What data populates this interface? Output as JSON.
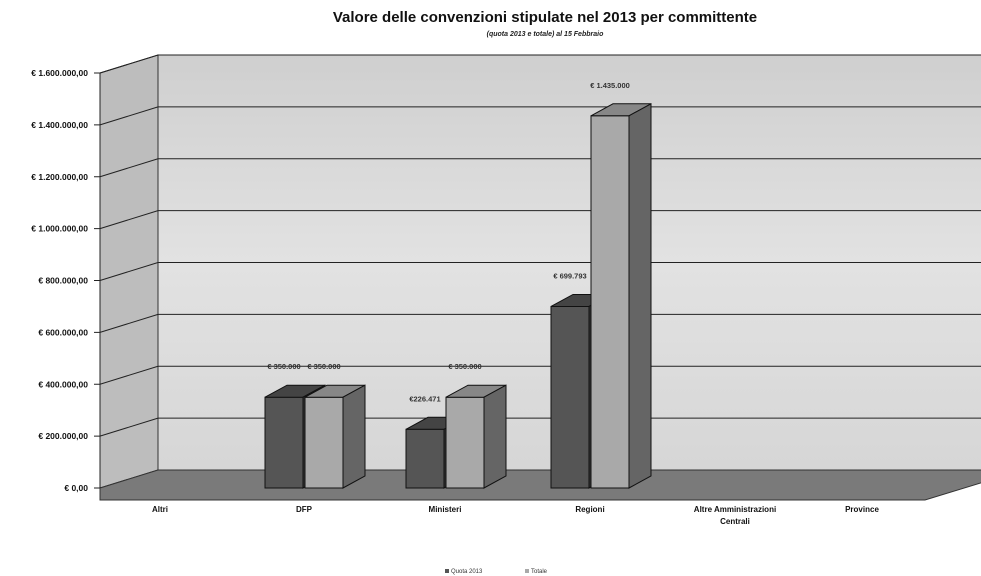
{
  "chart_data": {
    "type": "bar",
    "title": "Valore delle convenzioni stipulate nel 2013 per committente",
    "subtitle": "(quota 2013 e totale) al 15 Febbraio",
    "categories": [
      "Altri",
      "DFP",
      "Ministeri",
      "Regioni",
      "Altre Amministrazioni Centrali",
      "Province"
    ],
    "series": [
      {
        "name": "Quota 2013",
        "values": [
          0,
          350000,
          226471,
          699793,
          0,
          0
        ],
        "labels": [
          "",
          "€ 350.000",
          "€226.471",
          "€ 699.793",
          "",
          ""
        ]
      },
      {
        "name": "Totale",
        "values": [
          0,
          350000,
          350000,
          1435000,
          0,
          0
        ],
        "labels": [
          "",
          "€ 350.000",
          "€ 350.000",
          "€ 1.435.000",
          "",
          ""
        ]
      }
    ],
    "y_ticks": [
      {
        "value": 0,
        "label": "€ 0,00"
      },
      {
        "value": 200000,
        "label": "€ 200.000,00"
      },
      {
        "value": 400000,
        "label": "€ 400.000,00"
      },
      {
        "value": 600000,
        "label": "€ 600.000,00"
      },
      {
        "value": 800000,
        "label": "€ 800.000,00"
      },
      {
        "value": 1000000,
        "label": "€ 1.000.000,00"
      },
      {
        "value": 1200000,
        "label": "€ 1.200.000,00"
      },
      {
        "value": 1400000,
        "label": "€ 1.400.000,00"
      },
      {
        "value": 1600000,
        "label": "€ 1.600.000,00"
      }
    ],
    "ylim": [
      0,
      1600000
    ],
    "grid": true,
    "legend_position": "bottom",
    "colors": {
      "Quota 2013": "#555555",
      "Totale": "#a9a9a9",
      "wall": "#d4d4d4",
      "floor": "#7a7a7a"
    }
  }
}
